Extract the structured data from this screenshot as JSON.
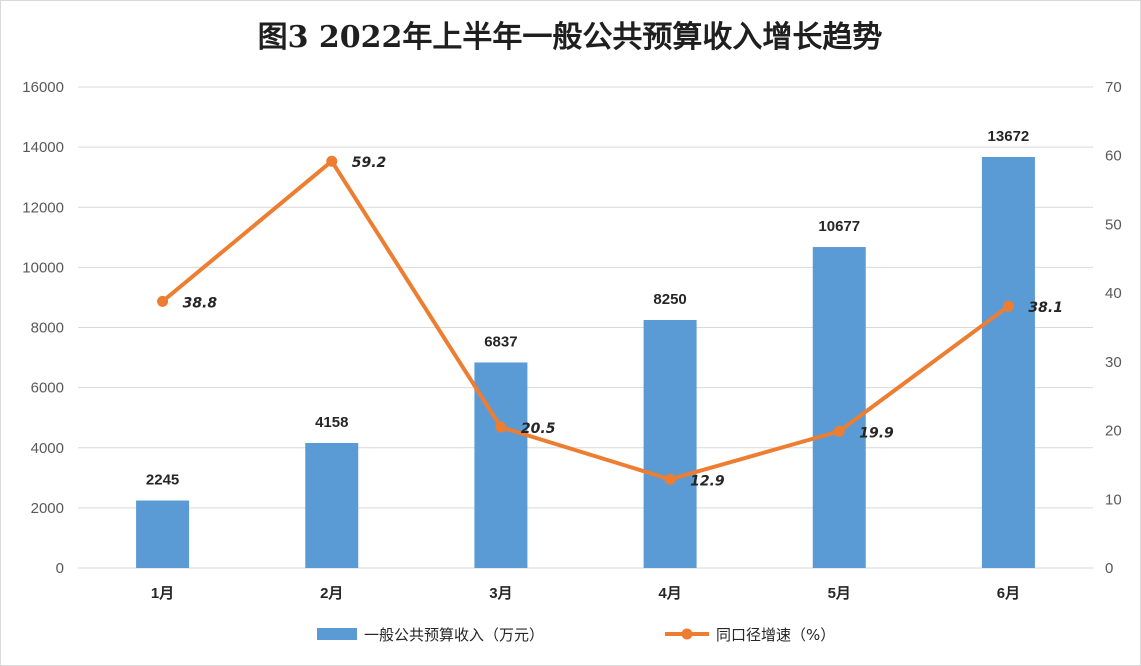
{
  "chart_data": {
    "type": "bar+line",
    "title": "图3  2022年上半年一般公共预算收入增长趋势",
    "categories": [
      "1月",
      "2月",
      "3月",
      "4月",
      "5月",
      "6月"
    ],
    "series": [
      {
        "name": "一般公共预算收入（万元）",
        "type": "bar",
        "axis": "left",
        "color": "#5b9bd5",
        "values": [
          2245,
          4158,
          6837,
          8250,
          10677,
          13672
        ],
        "labels": [
          "2245",
          "4158",
          "6837",
          "8250",
          "10677",
          "13672"
        ]
      },
      {
        "name": "同口径增速（%）",
        "type": "line",
        "axis": "right",
        "color": "#ed7d31",
        "values": [
          38.8,
          59.2,
          20.5,
          12.9,
          19.9,
          38.1
        ],
        "labels": [
          "38.8",
          "59.2",
          "20.5",
          "12.9",
          "19.9",
          "38.1"
        ]
      }
    ],
    "y_left": {
      "ylim": [
        0,
        16000
      ],
      "ticks": [
        "0",
        "2000",
        "4000",
        "6000",
        "8000",
        "10000",
        "12000",
        "14000",
        "16000"
      ]
    },
    "y_right": {
      "ylim": [
        0,
        70
      ],
      "ticks": [
        "0",
        "10",
        "20",
        "30",
        "40",
        "50",
        "60",
        "70"
      ]
    },
    "grid": true,
    "legend_position": "bottom",
    "gridline_color": "#d9d9d9"
  }
}
